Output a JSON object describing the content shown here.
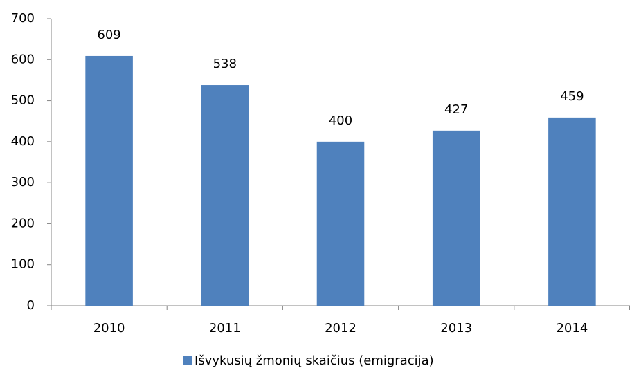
{
  "chart_data": {
    "type": "bar",
    "categories": [
      "2010",
      "2011",
      "2012",
      "2013",
      "2014"
    ],
    "series": [
      {
        "name": "Išvykusių žmonių skaičius (emigracija)",
        "color": "#4f81bd",
        "values": [
          609,
          538,
          400,
          427,
          459
        ]
      }
    ],
    "ylim": [
      0,
      700
    ],
    "yticks": [
      0,
      100,
      200,
      300,
      400,
      500,
      600,
      700
    ],
    "legend": "bottom"
  }
}
